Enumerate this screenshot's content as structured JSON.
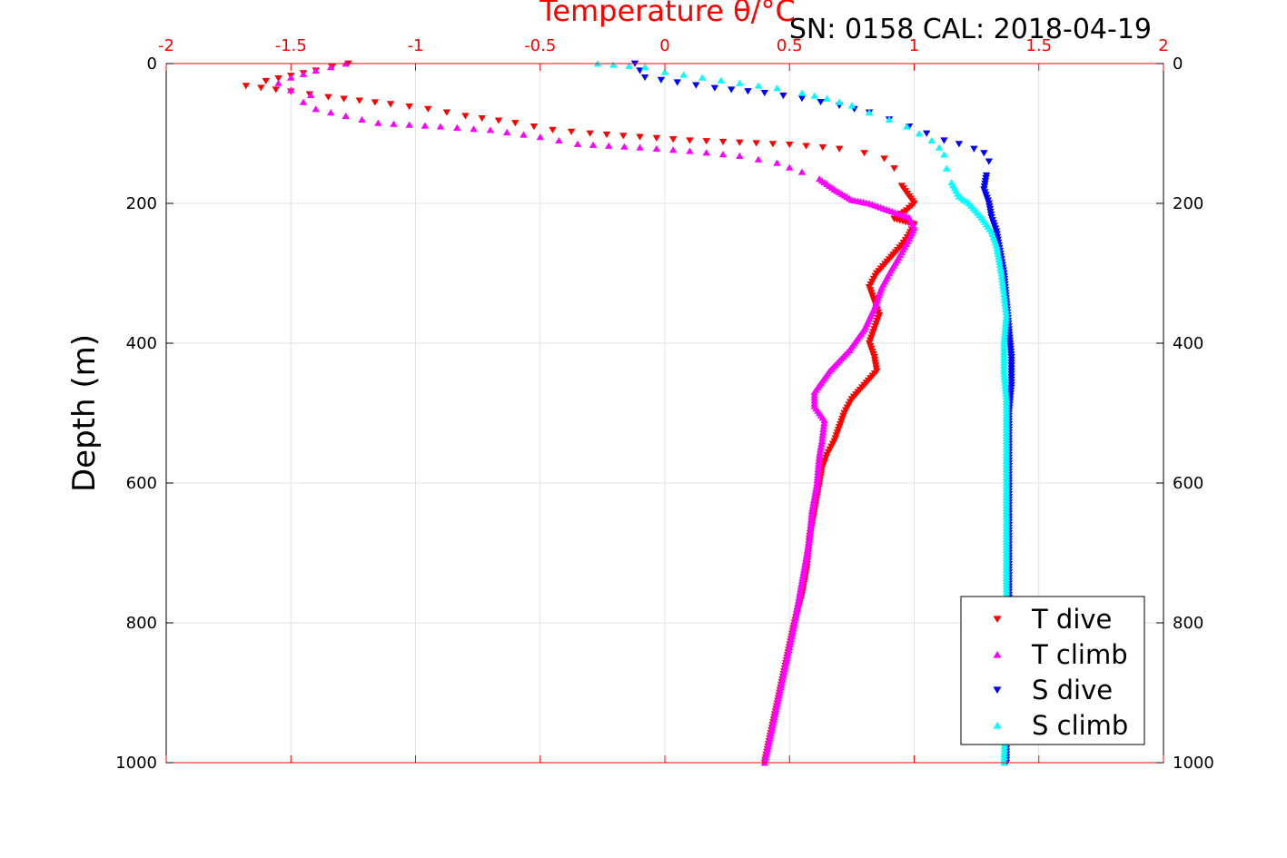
{
  "chart_data": {
    "type": "scatter",
    "title": "Temperature θ/°C",
    "subtitle": "SN: 0158  CAL: 2018-04-19",
    "ylabel": "Depth (m)",
    "xlim": [
      -2,
      2
    ],
    "ylim": [
      0,
      1000
    ],
    "y_reversed": true,
    "grid": true,
    "legend_position": "bottom-right",
    "x_ticks": [
      "-2",
      "-1.5",
      "-1",
      "-0.5",
      "0",
      "0.5",
      "1",
      "1.5",
      "2"
    ],
    "y_ticks": [
      "0",
      "200",
      "400",
      "600",
      "800",
      "1000"
    ],
    "series": [
      {
        "name": "T dive",
        "color": "#ff0000",
        "marker": "triangle-down",
        "points": [
          [
            -1.27,
            0
          ],
          [
            -1.4,
            10
          ],
          [
            -1.6,
            25
          ],
          [
            -1.68,
            32
          ],
          [
            -1.5,
            40
          ],
          [
            -1.35,
            48
          ],
          [
            -1.1,
            58
          ],
          [
            -0.95,
            65
          ],
          [
            -0.8,
            75
          ],
          [
            -0.6,
            85
          ],
          [
            -0.45,
            95
          ],
          [
            -0.3,
            100
          ],
          [
            -0.1,
            105
          ],
          [
            0.1,
            110
          ],
          [
            0.3,
            113
          ],
          [
            0.5,
            116
          ],
          [
            0.7,
            122
          ],
          [
            0.8,
            128
          ],
          [
            0.88,
            136
          ],
          [
            0.92,
            150
          ],
          [
            0.95,
            175
          ],
          [
            0.98,
            190
          ],
          [
            1.0,
            200
          ],
          [
            0.97,
            210
          ],
          [
            0.92,
            222
          ],
          [
            1.0,
            230
          ],
          [
            0.98,
            245
          ],
          [
            0.95,
            260
          ],
          [
            0.9,
            280
          ],
          [
            0.85,
            300
          ],
          [
            0.82,
            320
          ],
          [
            0.84,
            340
          ],
          [
            0.86,
            360
          ],
          [
            0.84,
            380
          ],
          [
            0.82,
            400
          ],
          [
            0.84,
            420
          ],
          [
            0.85,
            440
          ],
          [
            0.8,
            460
          ],
          [
            0.75,
            480
          ],
          [
            0.72,
            500
          ],
          [
            0.7,
            520
          ],
          [
            0.68,
            540
          ],
          [
            0.65,
            560
          ],
          [
            0.63,
            580
          ],
          [
            0.62,
            600
          ],
          [
            0.6,
            640
          ],
          [
            0.58,
            680
          ],
          [
            0.57,
            720
          ],
          [
            0.55,
            760
          ],
          [
            0.52,
            800
          ],
          [
            0.49,
            850
          ],
          [
            0.46,
            900
          ],
          [
            0.43,
            950
          ],
          [
            0.4,
            1000
          ]
        ]
      },
      {
        "name": "T climb",
        "color": "#ff00ff",
        "marker": "triangle-up",
        "points": [
          [
            -1.28,
            0
          ],
          [
            -1.4,
            10
          ],
          [
            -1.5,
            20
          ],
          [
            -1.55,
            28
          ],
          [
            -1.5,
            38
          ],
          [
            -1.42,
            45
          ],
          [
            -1.45,
            55
          ],
          [
            -1.4,
            65
          ],
          [
            -1.28,
            75
          ],
          [
            -1.15,
            85
          ],
          [
            -0.9,
            90
          ],
          [
            -0.7,
            95
          ],
          [
            -0.5,
            105
          ],
          [
            -0.35,
            115
          ],
          [
            -0.1,
            120
          ],
          [
            0.1,
            125
          ],
          [
            0.3,
            132
          ],
          [
            0.45,
            142
          ],
          [
            0.55,
            155
          ],
          [
            0.62,
            165
          ],
          [
            0.68,
            180
          ],
          [
            0.75,
            195
          ],
          [
            0.82,
            200
          ],
          [
            0.9,
            210
          ],
          [
            0.98,
            220
          ],
          [
            1.0,
            235
          ],
          [
            0.98,
            250
          ],
          [
            0.95,
            270
          ],
          [
            0.9,
            300
          ],
          [
            0.87,
            320
          ],
          [
            0.84,
            350
          ],
          [
            0.8,
            380
          ],
          [
            0.74,
            410
          ],
          [
            0.66,
            440
          ],
          [
            0.6,
            470
          ],
          [
            0.6,
            490
          ],
          [
            0.64,
            510
          ],
          [
            0.63,
            540
          ],
          [
            0.62,
            560
          ],
          [
            0.61,
            600
          ],
          [
            0.59,
            640
          ],
          [
            0.58,
            680
          ],
          [
            0.56,
            720
          ],
          [
            0.54,
            760
          ],
          [
            0.52,
            800
          ],
          [
            0.49,
            850
          ],
          [
            0.46,
            900
          ],
          [
            0.43,
            950
          ],
          [
            0.4,
            1000
          ]
        ]
      },
      {
        "name": "S dive",
        "color": "#0000ff",
        "marker": "triangle-down",
        "points": [
          [
            -0.12,
            0
          ],
          [
            -0.1,
            10
          ],
          [
            -0.08,
            20
          ],
          [
            0.05,
            27
          ],
          [
            0.2,
            35
          ],
          [
            0.4,
            42
          ],
          [
            0.55,
            50
          ],
          [
            0.7,
            60
          ],
          [
            0.82,
            70
          ],
          [
            0.9,
            80
          ],
          [
            0.98,
            90
          ],
          [
            1.05,
            100
          ],
          [
            1.12,
            110
          ],
          [
            1.18,
            115
          ],
          [
            1.24,
            122
          ],
          [
            1.28,
            128
          ],
          [
            1.3,
            140
          ],
          [
            1.29,
            160
          ],
          [
            1.28,
            180
          ],
          [
            1.3,
            200
          ],
          [
            1.31,
            220
          ],
          [
            1.33,
            240
          ],
          [
            1.34,
            260
          ],
          [
            1.35,
            280
          ],
          [
            1.36,
            300
          ],
          [
            1.37,
            340
          ],
          [
            1.38,
            380
          ],
          [
            1.39,
            420
          ],
          [
            1.39,
            460
          ],
          [
            1.38,
            500
          ],
          [
            1.38,
            540
          ],
          [
            1.38,
            600
          ],
          [
            1.38,
            700
          ],
          [
            1.38,
            800
          ],
          [
            1.37,
            900
          ],
          [
            1.37,
            1000
          ]
        ]
      },
      {
        "name": "S climb",
        "color": "#00ffff",
        "marker": "triangle-up",
        "points": [
          [
            -0.27,
            0
          ],
          [
            -0.08,
            5
          ],
          [
            0.0,
            12
          ],
          [
            0.15,
            20
          ],
          [
            0.3,
            28
          ],
          [
            0.45,
            35
          ],
          [
            0.55,
            42
          ],
          [
            0.65,
            50
          ],
          [
            0.75,
            60
          ],
          [
            0.82,
            70
          ],
          [
            0.9,
            80
          ],
          [
            0.97,
            90
          ],
          [
            1.02,
            100
          ],
          [
            1.07,
            110
          ],
          [
            1.1,
            120
          ],
          [
            1.12,
            130
          ],
          [
            1.13,
            150
          ],
          [
            1.15,
            170
          ],
          [
            1.18,
            190
          ],
          [
            1.22,
            200
          ],
          [
            1.27,
            220
          ],
          [
            1.31,
            240
          ],
          [
            1.33,
            260
          ],
          [
            1.34,
            280
          ],
          [
            1.35,
            300
          ],
          [
            1.36,
            330
          ],
          [
            1.37,
            360
          ],
          [
            1.36,
            400
          ],
          [
            1.36,
            440
          ],
          [
            1.37,
            480
          ],
          [
            1.37,
            520
          ],
          [
            1.37,
            560
          ],
          [
            1.37,
            600
          ],
          [
            1.37,
            700
          ],
          [
            1.37,
            800
          ],
          [
            1.37,
            900
          ],
          [
            1.36,
            1000
          ]
        ]
      }
    ]
  }
}
